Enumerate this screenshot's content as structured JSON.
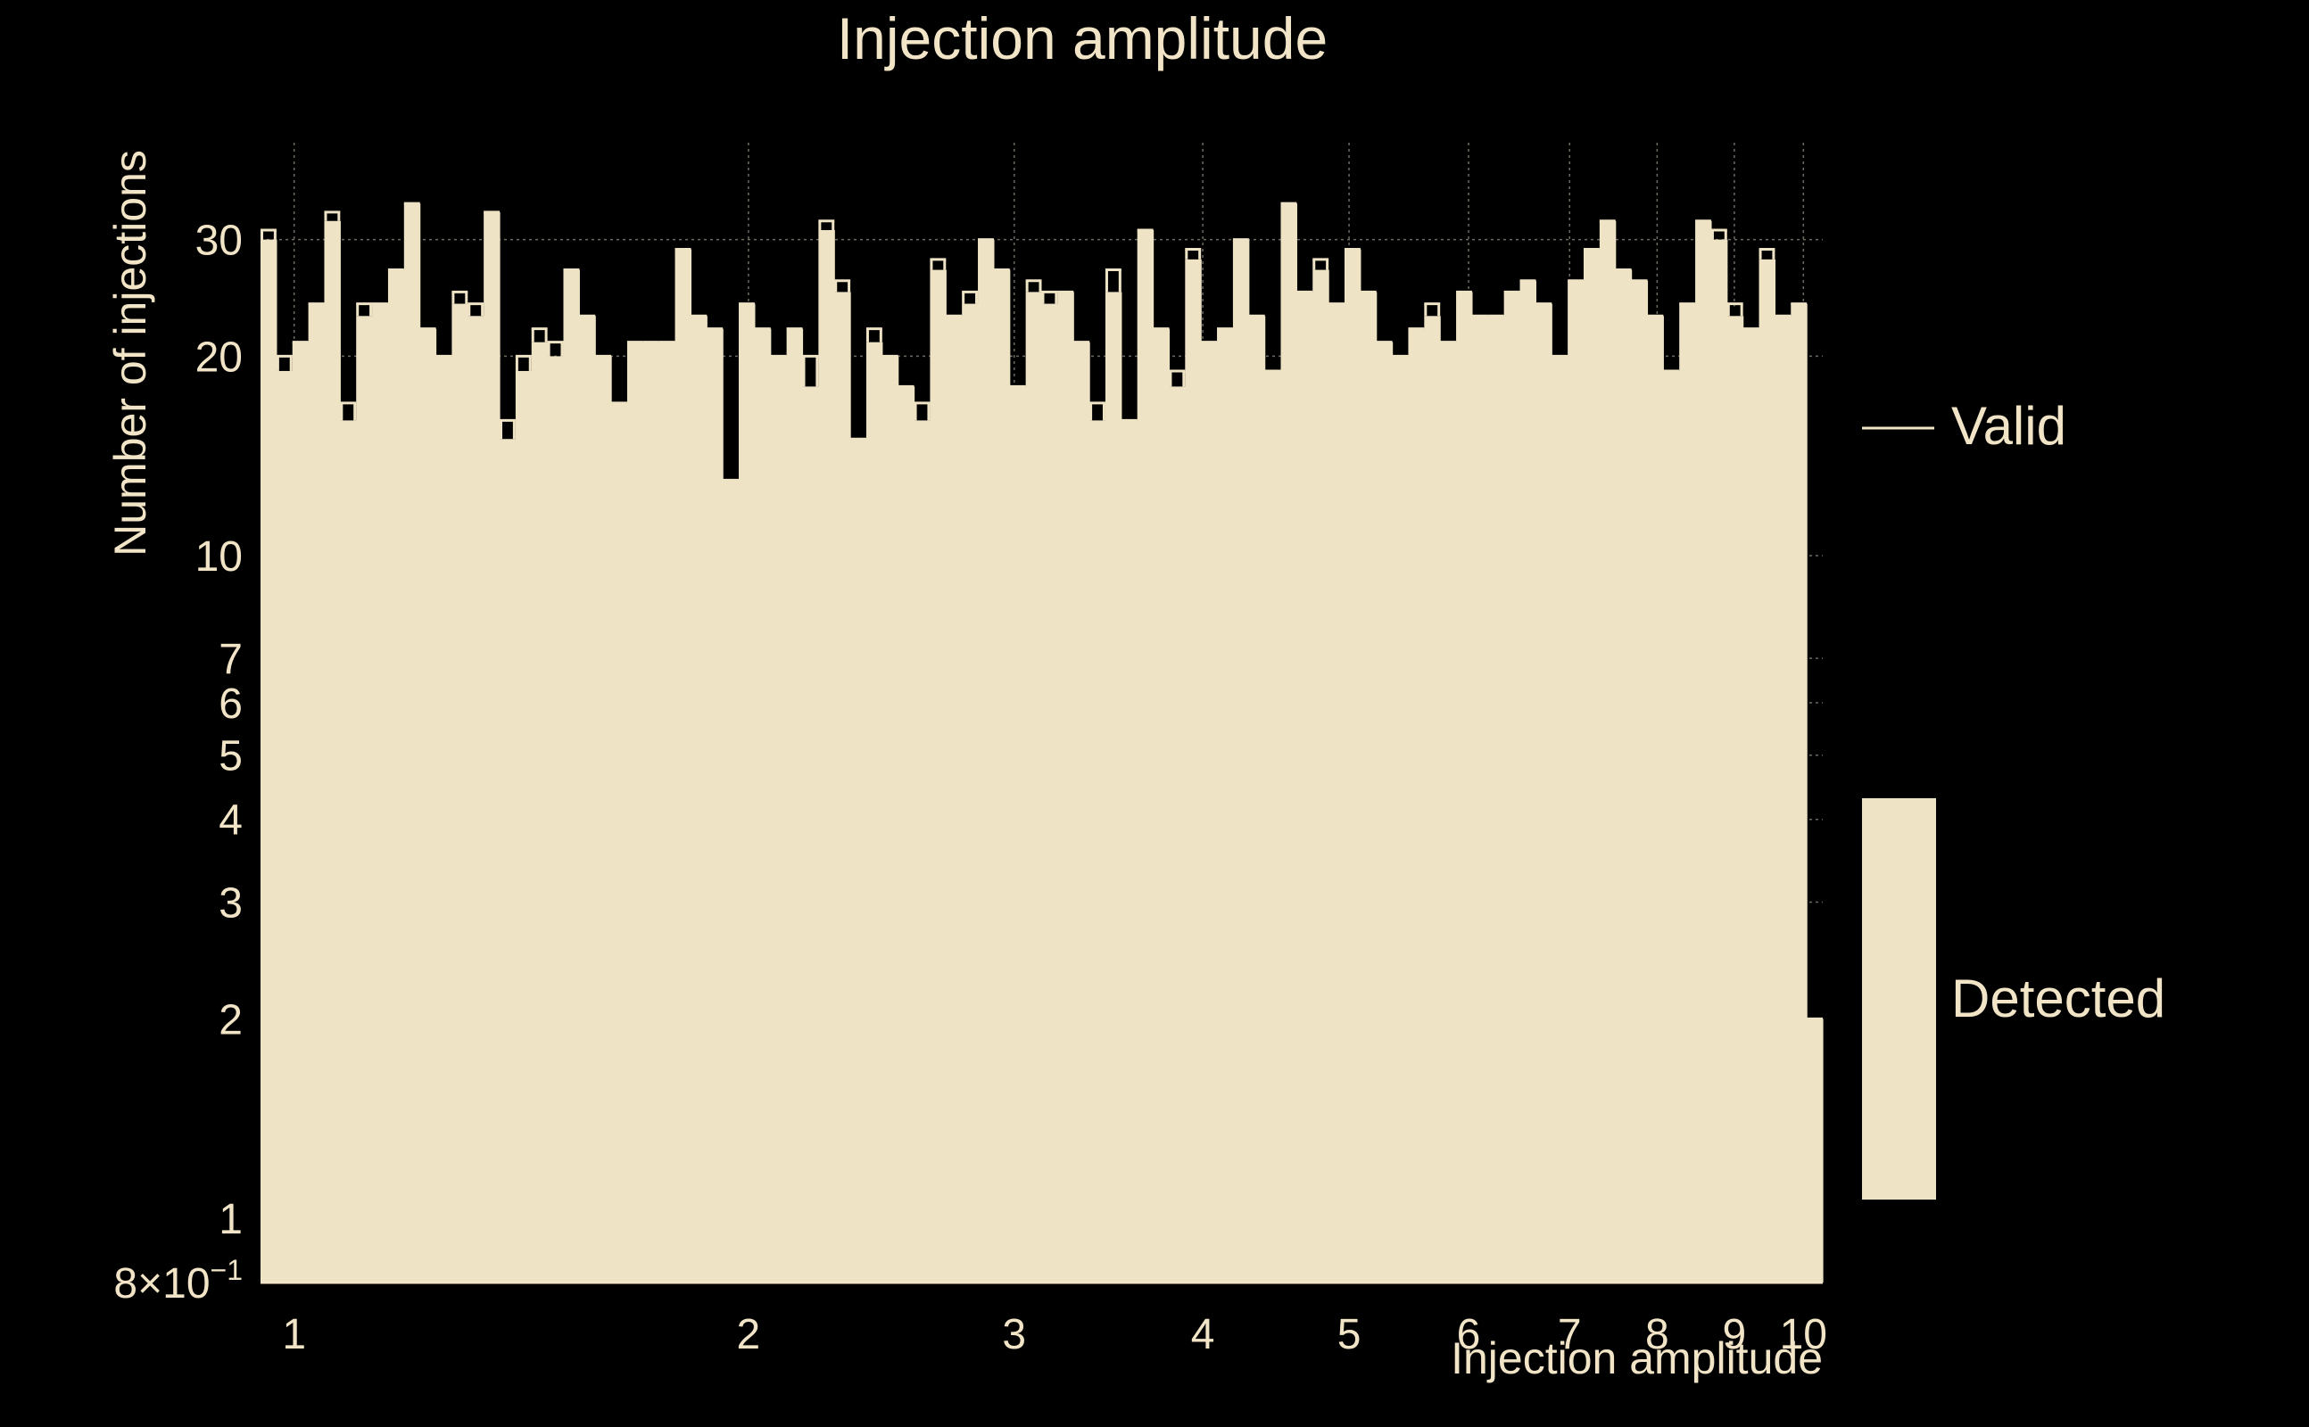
{
  "chart_data": {
    "type": "bar",
    "title": "Injection amplitude",
    "xlabel": "Injection amplitude",
    "ylabel": "Number of injections",
    "x_scale": "log",
    "y_scale": "log",
    "xlim": [
      0.95,
      10.3
    ],
    "ylim": [
      0.8,
      42
    ],
    "grid": true,
    "legend_position": "right",
    "x_ticks": [
      {
        "value": 1,
        "label": "1"
      },
      {
        "value": 2,
        "label": "2"
      },
      {
        "value": 3,
        "label": "3"
      },
      {
        "value": 4,
        "label": "4"
      },
      {
        "value": 5,
        "label": "5"
      },
      {
        "value": 6,
        "label": "6"
      },
      {
        "value": 7,
        "label": "7"
      },
      {
        "value": 8,
        "label": "8"
      },
      {
        "value": 9,
        "label": "9"
      },
      {
        "value": 10,
        "label": "10"
      }
    ],
    "y_ticks": [
      {
        "value": 0.8,
        "label": "8×10",
        "sup": "−1"
      },
      {
        "value": 1,
        "label": "1"
      },
      {
        "value": 2,
        "label": "2"
      },
      {
        "value": 3,
        "label": "3"
      },
      {
        "value": 4,
        "label": "4"
      },
      {
        "value": 5,
        "label": "5"
      },
      {
        "value": 6,
        "label": "6"
      },
      {
        "value": 7,
        "label": "7"
      },
      {
        "value": 10,
        "label": "10"
      },
      {
        "value": 20,
        "label": "20"
      },
      {
        "value": 30,
        "label": "30"
      }
    ],
    "bin_edges_range": [
      0.95,
      10.3
    ],
    "series": [
      {
        "name": "Valid",
        "style": "step-outline",
        "values": [
          31,
          20,
          21,
          24,
          33,
          17,
          24,
          24,
          27,
          34,
          22,
          20,
          25,
          24,
          33,
          16,
          20,
          22,
          21,
          27,
          23,
          20,
          17,
          21,
          21,
          21,
          29,
          23,
          22,
          13,
          24,
          22,
          20,
          22,
          20,
          32,
          26,
          15,
          22,
          20,
          18,
          17,
          28,
          23,
          25,
          30,
          27,
          18,
          26,
          25,
          25,
          21,
          17,
          27,
          16,
          31,
          22,
          19,
          29,
          21,
          22,
          30,
          23,
          19,
          34,
          25,
          28,
          24,
          29,
          25,
          21,
          20,
          22,
          24,
          21,
          25,
          23,
          23,
          25,
          26,
          24,
          20,
          26,
          29,
          32,
          27,
          26,
          23,
          19,
          24,
          32,
          31,
          24,
          22,
          29,
          23,
          24,
          2
        ]
      },
      {
        "name": "Detected",
        "style": "filled",
        "values": [
          30,
          19,
          21,
          24,
          32,
          16,
          23,
          24,
          27,
          34,
          22,
          20,
          24,
          23,
          33,
          15,
          19,
          21,
          20,
          27,
          23,
          20,
          17,
          21,
          21,
          21,
          29,
          23,
          22,
          13,
          24,
          22,
          20,
          22,
          18,
          31,
          25,
          15,
          21,
          20,
          18,
          16,
          27,
          23,
          24,
          30,
          27,
          18,
          25,
          24,
          25,
          21,
          16,
          25,
          16,
          31,
          22,
          18,
          28,
          21,
          22,
          30,
          23,
          19,
          34,
          25,
          27,
          24,
          29,
          25,
          21,
          20,
          22,
          23,
          21,
          25,
          23,
          23,
          25,
          26,
          24,
          20,
          26,
          29,
          32,
          27,
          26,
          23,
          19,
          24,
          32,
          30,
          23,
          22,
          28,
          23,
          24,
          2
        ]
      }
    ]
  },
  "colors": {
    "background": "#000000",
    "foreground": "#f2e4c6",
    "fill": "#efe3c6",
    "grid": "#6e6a60"
  }
}
